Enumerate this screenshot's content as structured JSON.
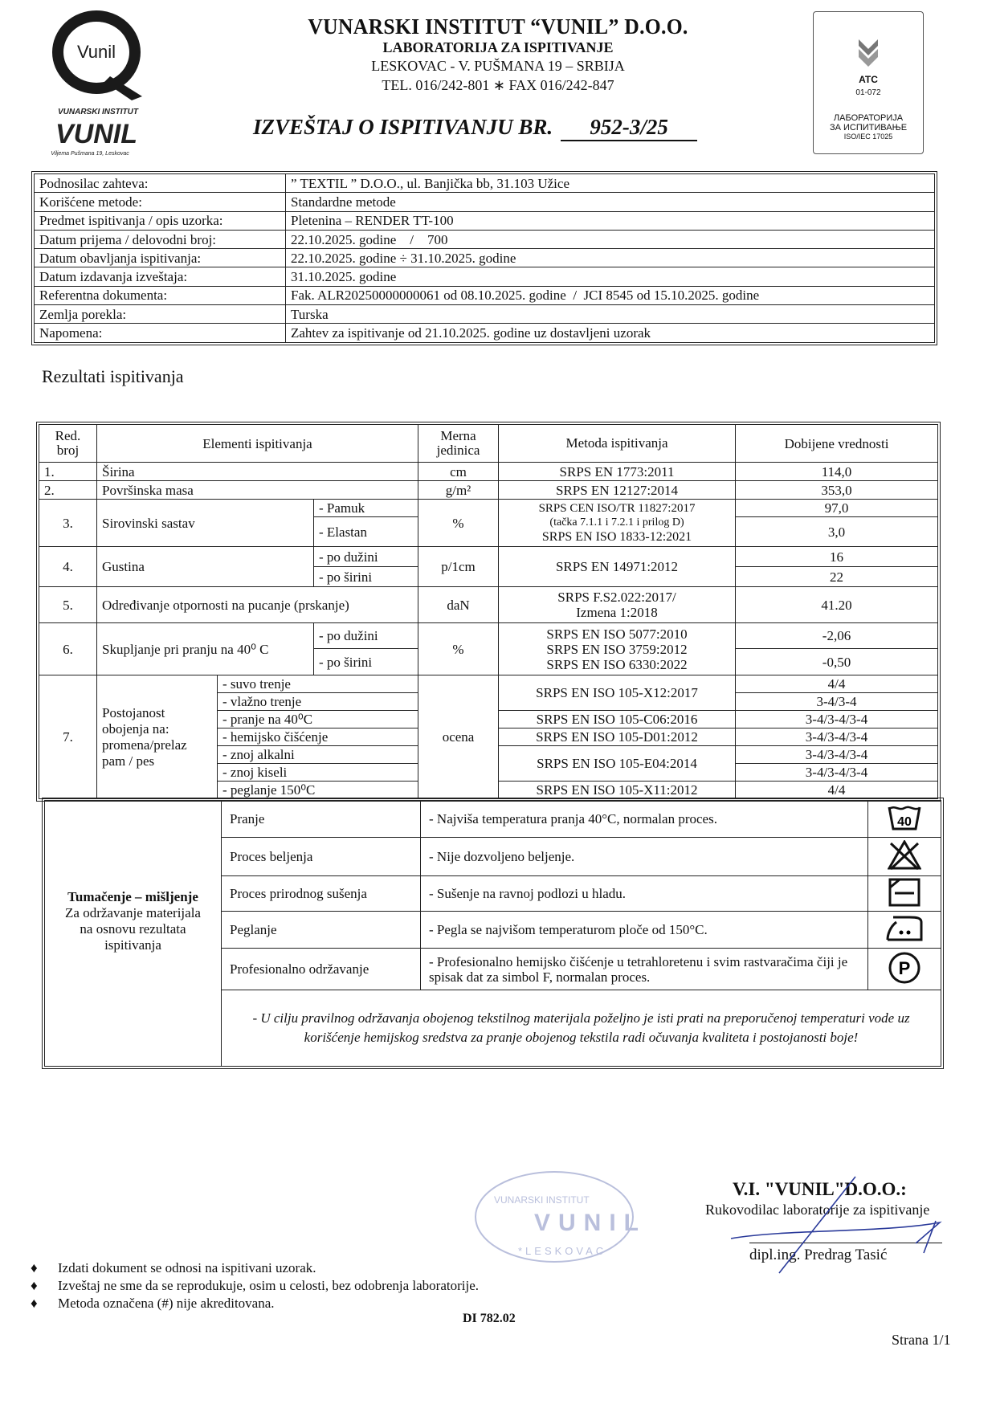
{
  "header": {
    "logo_text": "VUNARSKI INSTITUT",
    "logo_brand": "VUNIL",
    "logo_address": "Viljema Pušmana 19, Leskovac",
    "logo_q": "Vunil",
    "institute": "VUNARSKI INSTITUT “VUNIL” D.O.O.",
    "lab": "LABORATORIJA ZA ISPITIVANJE",
    "address": "LESKOVAC - V. PUŠMANA 19 – SRBIJA",
    "phone": "TEL. 016/242-801 ∗ FAX  016/242-847",
    "report_title": "IZVEŠTAJ O ISPITIVANJU BR.",
    "report_number": "952-3/25",
    "atc": {
      "code": "ATC",
      "number": "01-072",
      "line1": "ЛАБОРАТОРИЈА",
      "line2": "ЗА ИСПИТИВАЊЕ",
      "line3": "ISO/IEC 17025"
    }
  },
  "info": [
    {
      "label": "Podnosilac zahteva:",
      "value": "” TEXTIL ” D.O.O., ul. Banjička bb, 31.103 Užice"
    },
    {
      "label": "Korišćene metode:",
      "value": "Standardne metode"
    },
    {
      "label": "Predmet ispitivanja / opis uzorka:",
      "value": "Pletenina – RENDER TT-100"
    },
    {
      "label": "Datum prijema / delovodni broj:",
      "value": "22.10.2025. godine    /    700"
    },
    {
      "label": "Datum obavljanja ispitivanja:",
      "value": "22.10.2025. godine ÷ 31.10.2025. godine"
    },
    {
      "label": "Datum izdavanja izveštaja:",
      "value": "31.10.2025. godine"
    },
    {
      "label": "Referentna dokumenta:",
      "value": "Fak. ALR20250000000061 od 08.10.2025. godine  /  JCI 8545 od 15.10.2025. godine"
    },
    {
      "label": "Zemlja porekla:",
      "value": "Turska"
    },
    {
      "label": "Napomena:",
      "value": "Zahtev za ispitivanje od 21.10.2025. godine uz dostavljeni uzorak"
    }
  ],
  "section_title": "Rezultati ispitivanja",
  "results": {
    "headers": {
      "no": "Red. broj",
      "element": "Elementi ispitivanja",
      "unit": "Merna jedinica",
      "method": "Metoda ispitivanja",
      "value": "Dobijene vrednosti"
    },
    "r1": {
      "no": "1.",
      "element": "Širina",
      "unit": "cm",
      "method": "SRPS EN 1773:2011",
      "value": "114,0"
    },
    "r2": {
      "no": "2.",
      "element": "Površinska masa",
      "unit": "g/m²",
      "method": "SRPS EN 12127:2014",
      "value": "353,0"
    },
    "r3": {
      "no": "3.",
      "element": "Sirovinski sastav",
      "sub1": "- Pamuk",
      "sub2": "- Elastan",
      "unit": "%",
      "method1": "SRPS CEN ISO/TR 11827:2017",
      "method2": "(tačka 7.1.1 i 7.2.1 i prilog D)",
      "method3": "SRPS EN ISO 1833-12:2021",
      "value1": "97,0",
      "value2": "3,0"
    },
    "r4": {
      "no": "4.",
      "element": "Gustina",
      "sub1": "- po dužini",
      "sub2": "- po širini",
      "unit": "p/1cm",
      "method": "SRPS EN 14971:2012",
      "value1": "16",
      "value2": "22"
    },
    "r5": {
      "no": "5.",
      "element": "Određivanje otpornosti na pucanje (prskanje)",
      "unit": "daN",
      "method1": "SRPS F.S2.022:2017/",
      "method2": "Izmena 1:2018",
      "value": "41.20"
    },
    "r6": {
      "no": "6.",
      "element": "Skupljanje pri pranju na 40⁰ C",
      "sub1": "- po dužini",
      "sub2": "- po širini",
      "unit": "%",
      "method1": "SRPS EN ISO 5077:2010",
      "method2": "SRPS EN ISO 3759:2012",
      "method3": "SRPS EN ISO 6330:2022",
      "value1": "-2,06",
      "value2": "-0,50"
    },
    "r7": {
      "no": "7.",
      "element": "Postojanost obojenja na: promena/prelaz pam / pes",
      "unit": "ocena",
      "subs": [
        "- suvo trenje",
        "- vlažno trenje",
        "- pranje na 40⁰C",
        "- hemijsko čišćenje",
        "- znoj alkalni",
        "- znoj kiseli",
        "- peglanje 150⁰C"
      ],
      "methods": [
        "SRPS EN ISO 105-X12:2017",
        "SRPS EN ISO 105-C06:2016",
        "SRPS EN ISO 105-D01:2012",
        "SRPS EN ISO 105-E04:2014",
        "SRPS EN ISO 105-X11:2012"
      ],
      "values": [
        "4/4",
        "3-4/3-4",
        "3-4/3-4/3-4",
        "3-4/3-4/3-4",
        "3-4/3-4/3-4",
        "3-4/3-4/3-4",
        "4/4"
      ]
    }
  },
  "care": {
    "title": "Tumačenje – mišljenje",
    "subtitle": "Za održavanje materijala na osnovu rezultata ispitivanja",
    "rows": [
      {
        "label": "Pranje",
        "text": "-  Najviša temperatura pranja 40°C, normalan proces.",
        "icon": "wash-40-icon",
        "icon_text": "40"
      },
      {
        "label": "Proces beljenja",
        "text": "- Nije dozvoljeno beljenje.",
        "icon": "no-bleach-icon"
      },
      {
        "label": "Proces prirodnog sušenja",
        "text": "-  Sušenje na ravnoj podlozi u hladu.",
        "icon": "dry-flat-shade-icon"
      },
      {
        "label": "Peglanje",
        "text": "-  Pegla se najvišom temperaturom ploče od 150°C.",
        "icon": "iron-two-dots-icon"
      },
      {
        "label": "Profesionalno održavanje",
        "text": "-  Profesionalno hemijsko čišćenje u tetrahloretenu i svim rastvaračima čiji je spisak dat za simbol F, normalan proces.",
        "icon": "dry-clean-p-icon",
        "icon_text": "P"
      }
    ],
    "note": "- U cilju pravilnog održavanja obojenog tekstilnog materijala poželjno je isti prati na preporučenoj temperaturi vode uz korišćenje hemijskog sredstva za pranje obojenog tekstila radi očuvanja kvaliteta i postojanosti boje!"
  },
  "signature": {
    "company": "V.I. \"VUNIL\"D.O.O.:",
    "role": "Rukovodilac laboratorije za ispitivanje",
    "name": "dipl.ing. Predrag Tasić",
    "stamp": "VUNARSKI INSTITUT VUNIL LESKOVAC"
  },
  "footer": {
    "notes": [
      "Izdati dokument se odnosi na ispitivani uzorak.",
      "Izveštaj ne sme da se reprodukuje, osim u celosti, bez odobrenja laboratorije.",
      "Metoda označena (#) nije akreditovana."
    ],
    "doc_code": "DI 782.02",
    "page": "Strana 1/1"
  }
}
